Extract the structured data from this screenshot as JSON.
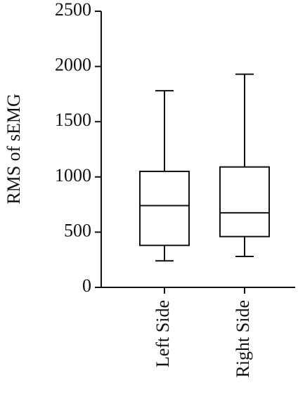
{
  "chart_data": {
    "type": "box",
    "y_label": "RMS of sEMG",
    "categories": [
      "Left Side",
      "Right Side"
    ],
    "boxes": [
      {
        "min": 240,
        "q1": 380,
        "median": 740,
        "q3": 1050,
        "max": 1780
      },
      {
        "min": 280,
        "q1": 460,
        "median": 675,
        "q3": 1090,
        "max": 1930
      }
    ],
    "color": "#ffffff",
    "ylim": [
      0,
      2500
    ],
    "yticks": [
      0,
      500,
      1000,
      1500,
      2000,
      2500
    ]
  }
}
